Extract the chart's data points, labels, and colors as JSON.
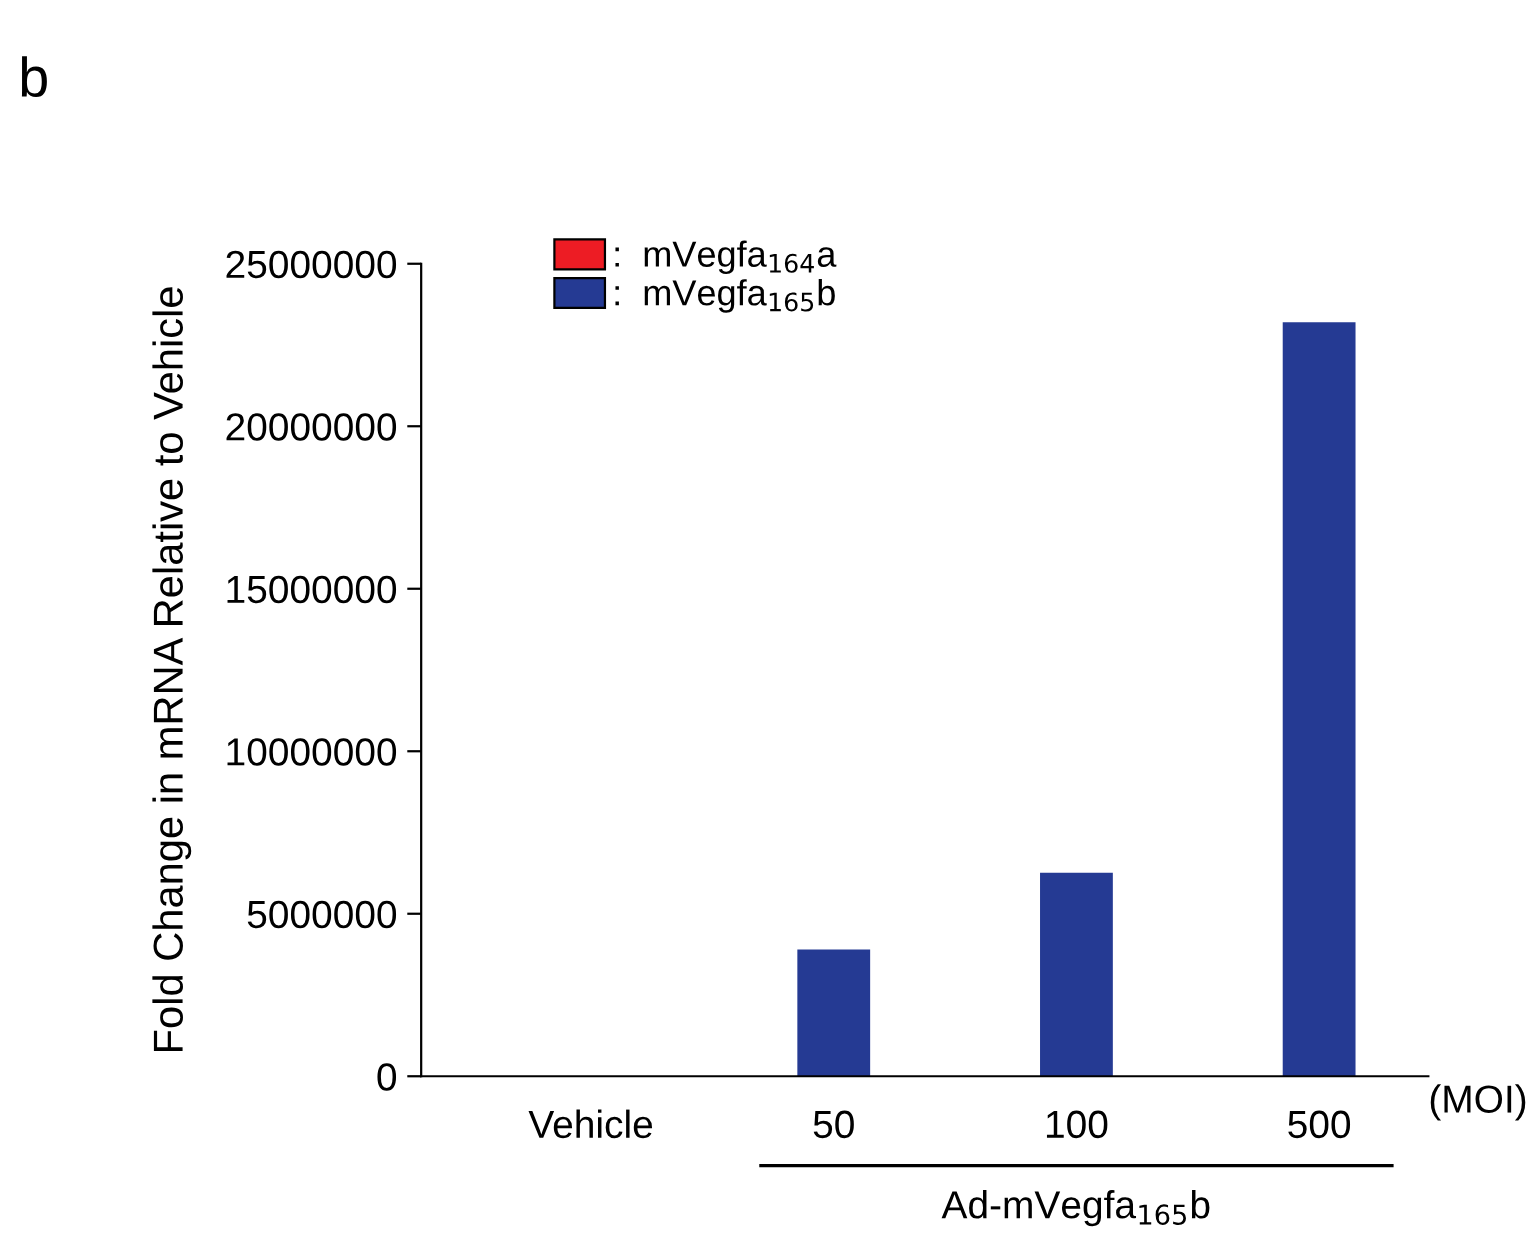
{
  "chart_data": {
    "type": "bar",
    "ylabel": "Fold Change in mRNA Relative to Vehicle",
    "categories": [
      "Vehicle",
      "50",
      "100",
      "500"
    ],
    "series": [
      {
        "name": ":  mVegfa$_{164}$a",
        "color": "#ed1c24",
        "values": [
          0,
          0,
          0,
          0
        ]
      },
      {
        "name": ":  mVegfa$_{165}$b",
        "color": "#253a93",
        "values": [
          0,
          3900000,
          6260000,
          23200000
        ]
      }
    ],
    "ylim": [
      0,
      25000000
    ],
    "yticks": [
      0,
      5000000,
      10000000,
      15000000,
      20000000,
      25000000
    ],
    "legend": "top left",
    "grid": false,
    "annotations": [
      "b",
      "(MOI)",
      "Ad-mVegfa$_{165}$b"
    ]
  }
}
